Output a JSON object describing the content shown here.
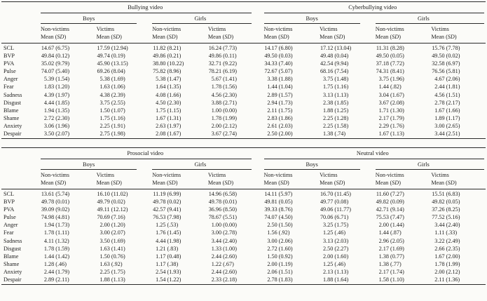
{
  "page": {
    "background": "#fbfbf8",
    "text_color": "#1d1d1d",
    "rule_color": "#2a2a2a"
  },
  "table": {
    "stat_header": "Mean (SD)",
    "gender_labels": [
      "Boys",
      "Girls"
    ],
    "row_labels": [
      "SCL",
      "BVP",
      "PVA",
      "Pulse",
      "Anger",
      "Fear",
      "Sadness",
      "Disgust",
      "Blame",
      "Shame",
      "Anxiety",
      "Despair"
    ],
    "panels": [
      {
        "videos": [
          {
            "title": "Bullying video",
            "columns": [
              {
                "gender": "Boys",
                "header": "Non-victims",
                "values": [
                  "14.67 (6.75)",
                  "49.84 (0.12)",
                  "35.02 (9.79)",
                  "74.07 (5.40)",
                  "5.39 (1.54)",
                  "1.83 (1.20)",
                  "4.39 (1.97)",
                  "4.44 (1.85)",
                  "1.94 (1.35)",
                  "2.72 (2.30)",
                  "3.06 (1.96)",
                  "3.50 (2.07)"
                ]
              },
              {
                "gender": "Boys",
                "header": "Victims",
                "values": [
                  "17.59 (12.94)",
                  "49.74 (0.19)",
                  "45.90 (13.15)",
                  "69.26 (8.04)",
                  "5.38 (1.69)",
                  "1.63 (1.06)",
                  "4.38 (2.39)",
                  "3.75 (2.55)",
                  "1.50 (1.07)",
                  "1.75 (1.16)",
                  "2.25 (1.91)",
                  "2.75 (1.98)"
                ]
              },
              {
                "gender": "Girls",
                "header": "Non-victims",
                "values": [
                  "11.82 (8.21)",
                  "49.86 (0.21)",
                  "38.80 (10.22)",
                  "75.82 (8.96)",
                  "5.38 (1.47)",
                  "1.64 (1.35)",
                  "4.08 (1.66)",
                  "4.50 (2.30)",
                  "1.75 (1.15)",
                  "1.67 (1.31)",
                  "2.63 (1.97)",
                  "2.08 (1.67)"
                ]
              },
              {
                "gender": "Girls",
                "header": "Victims",
                "values": [
                  "16.24 (7.73)",
                  "49.86 (0.11)",
                  "32.71 (9.22)",
                  "78.21 (6.19)",
                  "5.67 (1.41)",
                  "1.78 (1.56)",
                  "4.56 (2.30)",
                  "3.88 (2.71)",
                  "1.00 (0.00)",
                  "1.78 (1.99)",
                  "2.00 (2.12)",
                  "3.67 (2.74)"
                ]
              }
            ]
          },
          {
            "title": "Cyberbullying video",
            "columns": [
              {
                "gender": "Boys",
                "header": "Non-victims",
                "values": [
                  "14.17 (6.80)",
                  "49.50 (0.03)",
                  "34.33 (7.40)",
                  "72.67 (5.07)",
                  "3.38 (1.88)",
                  "1.44 (1.04)",
                  "2.89 (1.57)",
                  "2.94 (1.73)",
                  "2.11 (1.75)",
                  "2.83 (1.86)",
                  "2.61 (2.03)",
                  "2.50 (2.00)"
                ]
              },
              {
                "gender": "Boys",
                "header": "Victims",
                "values": [
                  "17.12 (13.04)",
                  "49.48 (0.04)",
                  "42.54 (9.94)",
                  "68.16 (7.54)",
                  "3.75 (1.48)",
                  "1.75 (1.16)",
                  "3.13 (1.13)",
                  "2.38 (1.85)",
                  "1.88 (1.25)",
                  "2.25 (1.28)",
                  "2.25 (1.58)",
                  "1.38 (.74)"
                ]
              },
              {
                "gender": "Girls",
                "header": "Non-victims",
                "values": [
                  "11.31 (8.28)",
                  "49.50 (0.05)",
                  "37.18 (7.72)",
                  "74.31 (8.41)",
                  "3.75 (1.96)",
                  "1.44 (.82)",
                  "3.04 (1.67)",
                  "3.67 (2.08)",
                  "1.71 (1.30)",
                  "2.17 (1.79)",
                  "2.29 (1.76)",
                  "1.67 (1.13)"
                ]
              },
              {
                "gender": "Girls",
                "header": "Victims",
                "values": [
                  "15.76 (7.78)",
                  "49.50 (0.02)",
                  "32.58 (6.97)",
                  "76.56 (5.81)",
                  "4.67 (2.06)",
                  "2.44 (1.81)",
                  "4.56 (1.51)",
                  "2.78 (2.17)",
                  "1.67 (1.66)",
                  "1.89 (1.17)",
                  "3.00 (2.65)",
                  "3.44 (2.51)"
                ]
              }
            ]
          }
        ]
      },
      {
        "videos": [
          {
            "title": "Prosocial video",
            "columns": [
              {
                "gender": "Boys",
                "header": "Non-victims",
                "values": [
                  "13.61 (5.74)",
                  "49.78 (0.01)",
                  "39.09 (9.02)",
                  "74.98 (4.81)",
                  "1.94 (1.73)",
                  "1.78 (1.11)",
                  "4.11 (1.32)",
                  "1.78 (1.59)",
                  "1.44 (1.42)",
                  "1.28 (.46)",
                  "2.44 (1.79)",
                  "2.89 (2.11)"
                ]
              },
              {
                "gender": "Boys",
                "header": "Victims",
                "values": [
                  "16.10 (11.02)",
                  "49.79 (0.02)",
                  "49.11 (12.12)",
                  "70.69 (7.16)",
                  "2.00 (1.20)",
                  "3.00 (2.07)",
                  "3.50 (1.69)",
                  "1.63 (1.41)",
                  "1.50 (0.76)",
                  "1.63 (.92)",
                  "2.25 (1.75)",
                  "1.88 (1.13)"
                ]
              },
              {
                "gender": "Girls",
                "header": "Non-victims",
                "values": [
                  "11.19 (6.99)",
                  "49.78 (0.02)",
                  "42.57 (9.41)",
                  "76.53 (7.98)",
                  "1.25 (.53)",
                  "1.76 (1.45)",
                  "4.44 (1.98)",
                  "1.21 (.83)",
                  "1.17 (0.48)",
                  "1.17 (.38)",
                  "2.54 (1.93)",
                  "1.54 (1.22)"
                ]
              },
              {
                "gender": "Girls",
                "header": "Victims",
                "values": [
                  "14.96 (6.58)",
                  "49.78 (0.01)",
                  "36.96 (8.50)",
                  "78.67 (5.51)",
                  "1.00 (0.00)",
                  "3.00 (2.78)",
                  "3.44 (2.40)",
                  "1.33 (1.00)",
                  "2.44 (2.60)",
                  "1.22 (.67)",
                  "2.44 (2.60)",
                  "2.33 (2.18)"
                ]
              }
            ]
          },
          {
            "title": "Neutral video",
            "columns": [
              {
                "gender": "Boys",
                "header": "Non-victims",
                "values": [
                  "14.11 (5.97)",
                  "49.81 (0.05)",
                  "39.33 (8.76)",
                  "74.07 (4.50)",
                  "2.50 (1.50)",
                  "1.56 (.92)",
                  "3.00 (2.06)",
                  "2.72 (1.60)",
                  "1.50 (0.92)",
                  "2.00 (1.19)",
                  "2.06 (1.51)",
                  "2.78 (1.83)"
                ]
              },
              {
                "gender": "Boys",
                "header": "Victims",
                "values": [
                  "16.70 (11.45)",
                  "49.77 (0.08)",
                  "49.06 (11.77)",
                  "70.06 (6.71)",
                  "3.25 (1.75)",
                  "1.25 (.46)",
                  "3.13 (2.03)",
                  "2.50 (2.27)",
                  "2.00 (1.60)",
                  "1.25 (.46)",
                  "2.13 (1.13)",
                  "1.88 (1.64)"
                ]
              },
              {
                "gender": "Girls",
                "header": "Non-victims",
                "values": [
                  "11.60 (7.27)",
                  "49.82 (0.09)",
                  "42.71 (9.14)",
                  "75.53 (7.47)",
                  "2.00 (1.44)",
                  "1.44 (.87)",
                  "2.96 (2.05)",
                  "2.17 (1.69)",
                  "1.38 (0.77)",
                  "1.38 (.77)",
                  "2.17 (1.74)",
                  "1.58 (1.10)"
                ]
              },
              {
                "gender": "Girls",
                "header": "Victims",
                "values": [
                  "15.51 (6.83)",
                  "49.82 (0.05)",
                  "37.26 (8.25)",
                  "77.52 (5.16)",
                  "3.44 (2.40)",
                  "1.11 (.33)",
                  "3.22 (2.49)",
                  "2.66 (2.35)",
                  "1.67 (2.00)",
                  "1.78 (1.99)",
                  "2.00 (2.12)",
                  "2.11 (1.36)"
                ]
              }
            ]
          }
        ]
      }
    ]
  }
}
